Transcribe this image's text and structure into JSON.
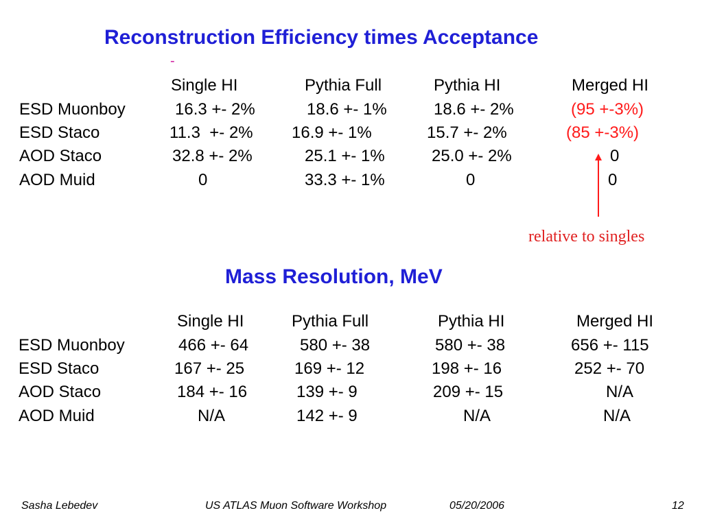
{
  "section1": {
    "title": "Reconstruction Efficiency times Acceptance",
    "marker": "-",
    "headers": [
      "Single HI",
      "Pythia Full",
      "Pythia HI",
      "Merged HI"
    ],
    "rows": [
      {
        "label": "ESD Muonboy",
        "cells": [
          "16.3 +- 2%",
          "18.6 +- 1%",
          "18.6 +- 2%",
          "(95 +-3%)"
        ]
      },
      {
        "label": "ESD Staco",
        "cells": [
          "11.3  +- 2%",
          "16.9 +- 1%",
          "15.7 +- 2%",
          "(85 +-3%)"
        ]
      },
      {
        "label": "AOD Staco",
        "cells": [
          "32.8 +- 2%",
          "25.1 +- 1%",
          "25.0 +- 2%",
          "0"
        ]
      },
      {
        "label": "AOD Muid",
        "cells": [
          "0",
          "33.3 +- 1%",
          "0",
          "0"
        ]
      }
    ],
    "note": "relative to singles",
    "accent_color": "#ff1a1a"
  },
  "section2": {
    "title": "Mass Resolution, MeV",
    "headers": [
      "Single HI",
      "Pythia Full",
      "Pythia HI",
      "Merged HI"
    ],
    "rows": [
      {
        "label": "ESD Muonboy",
        "cells": [
          "466 +- 64",
          "580 +- 38",
          "580 +- 38",
          "656 +- 115"
        ]
      },
      {
        "label": "ESD Staco",
        "cells": [
          "167 +- 25",
          "169 +- 12",
          "198 +- 16",
          "252 +- 70"
        ]
      },
      {
        "label": "AOD Staco",
        "cells": [
          "184 +- 16",
          "139 +- 9",
          "209 +- 15",
          "N/A"
        ]
      },
      {
        "label": "AOD Muid",
        "cells": [
          "N/A",
          "142 +- 9",
          "N/A",
          "N/A"
        ]
      }
    ]
  },
  "footer": {
    "author": "Sasha Lebedev",
    "event": "US ATLAS Muon Software Workshop",
    "date": "05/20/2006",
    "page": "12"
  },
  "colors": {
    "title": "#1f1fd6",
    "highlight": "#ff1a1a",
    "marker": "#d01fa0"
  }
}
